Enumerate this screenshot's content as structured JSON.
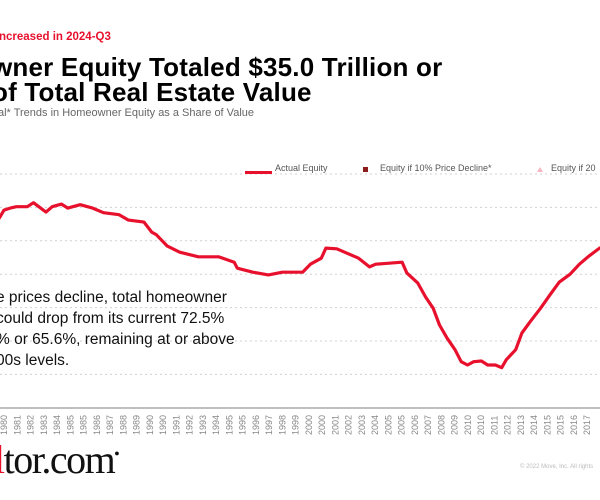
{
  "header": {
    "kicker": "ncreased in 2024-Q3",
    "title_line1": "wner Equity Totaled $35.0 Trillion or",
    "title_line2": "of Total Real Estate Value",
    "subtitle": "al* Trends in Homeowner Equity as a Share of Value"
  },
  "annotation": {
    "lines": [
      "e prices decline, total homeowner",
      "could drop from its current 72.5%",
      "% or 65.6%, remaining at or above",
      "00s levels."
    ]
  },
  "footer": {
    "logo_text_red": "l",
    "logo_text": "tor.com",
    "copyright": "© 2022 Move, Inc. All rights"
  },
  "colors": {
    "actual": "#e8112d",
    "decline10": "#8b1c1c",
    "decline20": "#f4b6c0",
    "grid": "#d0d0d0",
    "axis": "#999999"
  },
  "chart_data": {
    "type": "line",
    "title": "",
    "xlabel": "",
    "ylabel": "",
    "grid": true,
    "legend_placement": "top-right",
    "legend": [
      "Actual Equity",
      "Equity if 10% Price Decline*",
      "Equity if 20"
    ],
    "x_tick_labels": [
      "1980",
      "1981",
      "1982",
      "1983",
      "1984",
      "1985",
      "1985",
      "1986",
      "1987",
      "1988",
      "1989",
      "1990",
      "1990",
      "1991",
      "1992",
      "1993",
      "1994",
      "1995",
      "1995",
      "1996",
      "1997",
      "1998",
      "1999",
      "2000",
      "2000",
      "2001",
      "2002",
      "2003",
      "2004",
      "2005",
      "2005",
      "2006",
      "2007",
      "2008",
      "2009",
      "2010",
      "2010",
      "2011",
      "2012",
      "2013",
      "2014",
      "2015",
      "2015",
      "2016",
      "2017"
    ],
    "series": [
      {
        "name": "Actual Equity",
        "points": [
          [
            1979.7,
            63.4
          ],
          [
            1980.0,
            64.6
          ],
          [
            1980.4,
            64.9
          ],
          [
            1980.8,
            65.1
          ],
          [
            1981.5,
            65.1
          ],
          [
            1981.9,
            65.7
          ],
          [
            1982.7,
            64.3
          ],
          [
            1983.1,
            65.1
          ],
          [
            1983.7,
            65.5
          ],
          [
            1984.1,
            64.9
          ],
          [
            1984.9,
            65.4
          ],
          [
            1985.7,
            64.9
          ],
          [
            1986.4,
            64.2
          ],
          [
            1987.4,
            63.9
          ],
          [
            1988.0,
            63.1
          ],
          [
            1989.0,
            62.8
          ],
          [
            1989.5,
            61.3
          ],
          [
            1989.8,
            60.9
          ],
          [
            1990.5,
            59.2
          ],
          [
            1991.3,
            58.3
          ],
          [
            1992.5,
            57.6
          ],
          [
            1993.8,
            57.6
          ],
          [
            1994.8,
            56.8
          ],
          [
            1995.0,
            55.9
          ],
          [
            1996.0,
            55.3
          ],
          [
            1997.0,
            54.9
          ],
          [
            1997.9,
            55.3
          ],
          [
            1999.2,
            55.3
          ],
          [
            1999.7,
            56.5
          ],
          [
            2000.4,
            57.4
          ],
          [
            2000.7,
            58.9
          ],
          [
            2001.4,
            58.8
          ],
          [
            2002.8,
            57.4
          ],
          [
            2003.5,
            56.1
          ],
          [
            2003.9,
            56.5
          ],
          [
            2005.6,
            56.8
          ],
          [
            2005.9,
            55.2
          ],
          [
            2006.6,
            53.7
          ],
          [
            2007.1,
            51.6
          ],
          [
            2007.6,
            49.9
          ],
          [
            2008.0,
            47.4
          ],
          [
            2008.5,
            45.4
          ],
          [
            2009.0,
            43.7
          ],
          [
            2009.4,
            41.9
          ],
          [
            2009.8,
            41.4
          ],
          [
            2010.2,
            41.9
          ],
          [
            2010.7,
            42.0
          ],
          [
            2011.1,
            41.4
          ],
          [
            2011.6,
            41.4
          ],
          [
            2012.0,
            41.0
          ],
          [
            2012.3,
            42.2
          ],
          [
            2012.9,
            43.7
          ],
          [
            2013.3,
            46.2
          ],
          [
            2013.8,
            47.8
          ],
          [
            2014.5,
            49.9
          ],
          [
            2015.1,
            51.9
          ],
          [
            2015.7,
            53.8
          ],
          [
            2016.4,
            55.0
          ],
          [
            2017.0,
            56.5
          ],
          [
            2017.6,
            57.7
          ],
          [
            2018.3,
            58.9
          ]
        ]
      }
    ]
  }
}
